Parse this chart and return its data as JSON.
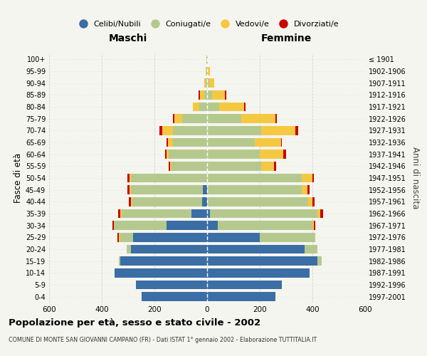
{
  "age_groups": [
    "0-4",
    "5-9",
    "10-14",
    "15-19",
    "20-24",
    "25-29",
    "30-34",
    "35-39",
    "40-44",
    "45-49",
    "50-54",
    "55-59",
    "60-64",
    "65-69",
    "70-74",
    "75-79",
    "80-84",
    "85-89",
    "90-94",
    "95-99",
    "100+"
  ],
  "birth_years": [
    "1997-2001",
    "1992-1996",
    "1987-1991",
    "1982-1986",
    "1977-1981",
    "1972-1976",
    "1967-1971",
    "1962-1966",
    "1957-1961",
    "1952-1956",
    "1947-1951",
    "1942-1946",
    "1937-1941",
    "1932-1936",
    "1927-1931",
    "1922-1926",
    "1917-1921",
    "1912-1916",
    "1907-1911",
    "1902-1906",
    "≤ 1901"
  ],
  "male_celibi": [
    250,
    270,
    350,
    330,
    290,
    280,
    155,
    60,
    20,
    15,
    0,
    0,
    0,
    0,
    0,
    0,
    0,
    0,
    0,
    0,
    0
  ],
  "male_coniugati": [
    0,
    0,
    0,
    5,
    15,
    50,
    200,
    265,
    265,
    275,
    290,
    135,
    145,
    130,
    130,
    95,
    30,
    12,
    5,
    3,
    2
  ],
  "male_vedovi": [
    0,
    0,
    0,
    0,
    0,
    5,
    0,
    5,
    5,
    5,
    5,
    5,
    10,
    20,
    40,
    30,
    25,
    15,
    5,
    3,
    0
  ],
  "male_divorziati": [
    0,
    0,
    0,
    0,
    0,
    5,
    5,
    8,
    8,
    8,
    8,
    5,
    5,
    5,
    10,
    5,
    0,
    5,
    0,
    0,
    0
  ],
  "female_celibi": [
    260,
    285,
    390,
    420,
    370,
    200,
    40,
    10,
    0,
    0,
    0,
    0,
    0,
    0,
    0,
    0,
    0,
    0,
    0,
    0,
    0
  ],
  "female_coniugati": [
    0,
    0,
    0,
    15,
    50,
    210,
    360,
    410,
    385,
    360,
    360,
    205,
    200,
    180,
    205,
    130,
    45,
    18,
    8,
    3,
    2
  ],
  "female_vedovi": [
    0,
    0,
    0,
    0,
    0,
    0,
    5,
    10,
    15,
    20,
    40,
    50,
    90,
    100,
    130,
    130,
    95,
    50,
    20,
    8,
    2
  ],
  "female_divorziati": [
    0,
    0,
    0,
    0,
    0,
    0,
    5,
    10,
    8,
    8,
    5,
    8,
    10,
    5,
    10,
    5,
    5,
    5,
    0,
    0,
    0
  ],
  "colors": {
    "celibi": "#3a6ea5",
    "coniugati": "#b5c98e",
    "vedovi": "#f5c842",
    "divorziati": "#cc0000"
  },
  "xlim": 600,
  "title": "Popolazione per età, sesso e stato civile - 2002",
  "subtitle": "COMUNE DI MONTE SAN GIOVANNI CAMPANO (FR) - Dati ISTAT 1° gennaio 2002 - Elaborazione TUTTITALIA.IT",
  "ylabel_left": "Fasce di età",
  "ylabel_right": "Anni di nascita",
  "legend_labels": [
    "Celibi/Nubili",
    "Coniugati/e",
    "Vedovi/e",
    "Divorziati/e"
  ],
  "background_color": "#f5f5f0",
  "grid_color": "#cccccc"
}
